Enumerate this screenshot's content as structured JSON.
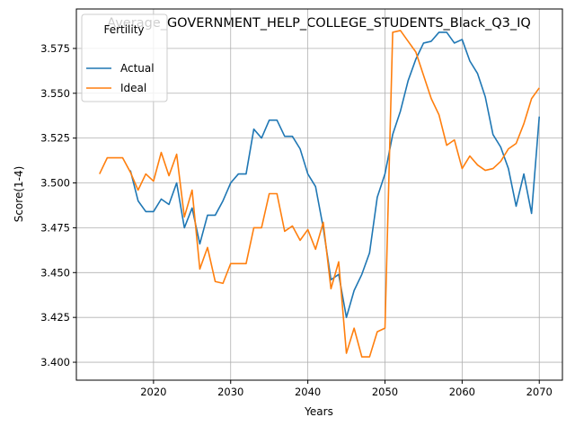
{
  "chart_data": {
    "type": "line",
    "title": "Average_GOVERNMENT_HELP_COLLEGE_STUDENTS_Black_Q3_IQ",
    "xlabel": "Years",
    "ylabel": "Score(1-4)",
    "xlim": [
      2010,
      2073
    ],
    "ylim": [
      3.39,
      3.597
    ],
    "xticks": [
      2020,
      2030,
      2040,
      2050,
      2060,
      2070
    ],
    "yticks": [
      3.4,
      3.425,
      3.45,
      3.475,
      3.5,
      3.525,
      3.55,
      3.575
    ],
    "grid": true,
    "legend": {
      "title": "Fertility",
      "position": "top-left"
    },
    "series": [
      {
        "name": "Actual",
        "color": "#1f77b4",
        "x": [
          2017,
          2018,
          2019,
          2020,
          2021,
          2022,
          2023,
          2024,
          2025,
          2026,
          2027,
          2028,
          2029,
          2030,
          2031,
          2032,
          2033,
          2034,
          2035,
          2036,
          2037,
          2038,
          2039,
          2040,
          2041,
          2042,
          2043,
          2044,
          2045,
          2046,
          2047,
          2048,
          2049,
          2050,
          2051,
          2052,
          2053,
          2054,
          2055,
          2056,
          2057,
          2058,
          2059,
          2060,
          2061,
          2062,
          2063,
          2064,
          2065,
          2066,
          2067,
          2068,
          2069,
          2070
        ],
        "values": [
          3.507,
          3.49,
          3.484,
          3.484,
          3.491,
          3.488,
          3.5,
          3.475,
          3.486,
          3.466,
          3.482,
          3.482,
          3.49,
          3.5,
          3.505,
          3.505,
          3.53,
          3.525,
          3.535,
          3.535,
          3.526,
          3.526,
          3.519,
          3.505,
          3.498,
          3.475,
          3.446,
          3.449,
          3.425,
          3.44,
          3.449,
          3.461,
          3.492,
          3.505,
          3.527,
          3.54,
          3.557,
          3.569,
          3.578,
          3.579,
          3.584,
          3.584,
          3.578,
          3.58,
          3.568,
          3.561,
          3.548,
          3.527,
          3.52,
          3.508,
          3.487,
          3.505,
          3.483,
          3.537
        ]
      },
      {
        "name": "Ideal",
        "color": "#ff7f0e",
        "x": [
          2013,
          2014,
          2016,
          2017,
          2018,
          2019,
          2020,
          2021,
          2022,
          2023,
          2024,
          2025,
          2026,
          2027,
          2028,
          2029,
          2030,
          2031,
          2032,
          2033,
          2034,
          2035,
          2036,
          2037,
          2038,
          2039,
          2040,
          2041,
          2042,
          2043,
          2044,
          2045,
          2046,
          2047,
          2048,
          2049,
          2050,
          2051,
          2052,
          2053,
          2054,
          2055,
          2056,
          2057,
          2058,
          2059,
          2060,
          2061,
          2062,
          2063,
          2064,
          2065,
          2066,
          2067,
          2068,
          2069,
          2070
        ],
        "values": [
          3.505,
          3.514,
          3.514,
          3.506,
          3.496,
          3.505,
          3.501,
          3.517,
          3.504,
          3.516,
          3.481,
          3.496,
          3.452,
          3.464,
          3.445,
          3.444,
          3.455,
          3.455,
          3.455,
          3.475,
          3.475,
          3.494,
          3.494,
          3.473,
          3.476,
          3.468,
          3.474,
          3.463,
          3.478,
          3.441,
          3.456,
          3.405,
          3.419,
          3.403,
          3.403,
          3.417,
          3.419,
          3.584,
          3.585,
          3.579,
          3.573,
          3.56,
          3.547,
          3.538,
          3.521,
          3.524,
          3.508,
          3.515,
          3.51,
          3.507,
          3.508,
          3.512,
          3.519,
          3.522,
          3.533,
          3.547,
          3.553
        ]
      }
    ]
  }
}
